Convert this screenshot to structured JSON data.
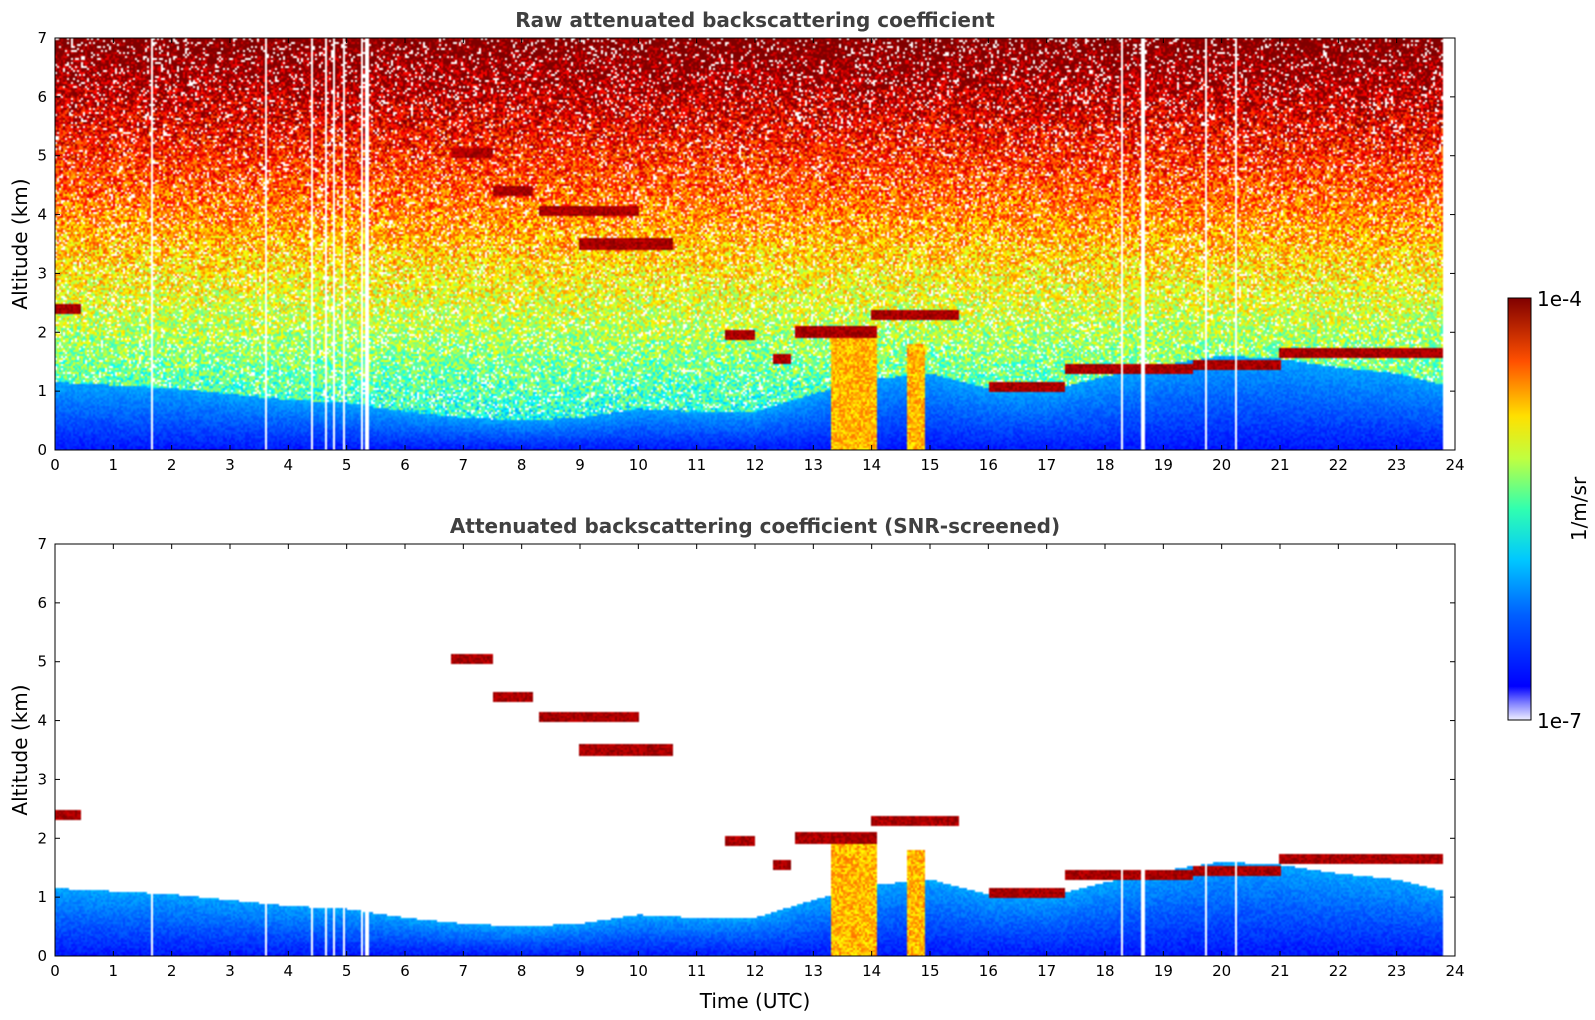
{
  "chart_data": [
    {
      "type": "heatmap",
      "id": "raw",
      "title": "Raw attenuated backscattering coefficient",
      "xlabel": "",
      "ylabel": "Altitude (km)",
      "xlim": [
        0,
        24
      ],
      "ylim": [
        0,
        7
      ],
      "xticks": [
        "0",
        "1",
        "2",
        "3",
        "4",
        "5",
        "6",
        "7",
        "8",
        "9",
        "10",
        "11",
        "12",
        "13",
        "14",
        "15",
        "16",
        "17",
        "18",
        "19",
        "20",
        "21",
        "22",
        "23",
        "24"
      ],
      "yticks": [
        "0",
        "1",
        "2",
        "3",
        "4",
        "5",
        "6",
        "7"
      ],
      "data_extent_hours": [
        0,
        23.8
      ],
      "missing_profiles_utc": [
        1.65,
        3.62,
        4.42,
        4.65,
        4.78,
        4.95,
        5.25,
        5.35,
        18.3,
        18.65,
        19.72,
        20.25
      ],
      "features": [
        {
          "kind": "cloud_layer",
          "t_start": 0.0,
          "t_end": 0.45,
          "alt_km": 2.4
        },
        {
          "kind": "cloud_layer",
          "t_start": 6.8,
          "t_end": 7.5,
          "alt_km": 5.05
        },
        {
          "kind": "cloud_layer",
          "t_start": 7.5,
          "t_end": 8.2,
          "alt_km": 4.4
        },
        {
          "kind": "cloud_layer",
          "t_start": 8.3,
          "t_end": 10.0,
          "alt_km": 4.05
        },
        {
          "kind": "cloud_layer",
          "t_start": 9.0,
          "t_end": 10.0,
          "alt_km": 3.5
        },
        {
          "kind": "cloud_layer",
          "t_start": 10.0,
          "t_end": 10.6,
          "alt_km": 3.5
        },
        {
          "kind": "cloud_layer",
          "t_start": 11.5,
          "t_end": 12.0,
          "alt_km": 1.95
        },
        {
          "kind": "cloud_layer",
          "t_start": 12.3,
          "t_end": 12.6,
          "alt_km": 1.55
        },
        {
          "kind": "cloud_layer",
          "t_start": 12.7,
          "t_end": 14.1,
          "alt_km": 2.0
        },
        {
          "kind": "cloud_layer",
          "t_start": 14.0,
          "t_end": 15.5,
          "alt_km": 2.3
        },
        {
          "kind": "cloud_layer",
          "t_start": 16.0,
          "t_end": 17.3,
          "alt_km": 1.08
        },
        {
          "kind": "cloud_layer",
          "t_start": 17.3,
          "t_end": 19.5,
          "alt_km": 1.38
        },
        {
          "kind": "cloud_layer",
          "t_start": 19.5,
          "t_end": 21.0,
          "alt_km": 1.45
        },
        {
          "kind": "cloud_layer",
          "t_start": 21.0,
          "t_end": 23.8,
          "alt_km": 1.65
        },
        {
          "kind": "precipitation_column",
          "t_start": 13.3,
          "t_end": 14.1,
          "alt_top_km": 2.0
        },
        {
          "kind": "precipitation_column",
          "t_start": 14.6,
          "t_end": 14.9,
          "alt_top_km": 1.8
        }
      ]
    },
    {
      "type": "heatmap",
      "id": "screened",
      "title": "Attenuated backscattering coefficient (SNR-screened)",
      "xlabel": "Time (UTC)",
      "ylabel": "Altitude (km)",
      "xlim": [
        0,
        24
      ],
      "ylim": [
        0,
        7
      ],
      "xticks": [
        "0",
        "1",
        "2",
        "3",
        "4",
        "5",
        "6",
        "7",
        "8",
        "9",
        "10",
        "11",
        "12",
        "13",
        "14",
        "15",
        "16",
        "17",
        "18",
        "19",
        "20",
        "21",
        "22",
        "23",
        "24"
      ],
      "yticks": [
        "0",
        "1",
        "2",
        "3",
        "4",
        "5",
        "6",
        "7"
      ],
      "data_extent_hours": [
        0,
        23.8
      ],
      "missing_profiles_utc": [
        1.65,
        3.62,
        4.42,
        4.65,
        4.78,
        4.95,
        5.25,
        5.35,
        18.3,
        18.65,
        19.72,
        20.25
      ],
      "boundary_layer_top_km": [
        [
          0,
          1.15
        ],
        [
          1,
          1.1
        ],
        [
          2,
          1.05
        ],
        [
          3,
          0.95
        ],
        [
          4,
          0.85
        ],
        [
          5,
          0.8
        ],
        [
          6,
          0.65
        ],
        [
          7,
          0.55
        ],
        [
          8,
          0.5
        ],
        [
          9,
          0.55
        ],
        [
          10,
          0.7
        ],
        [
          11,
          0.65
        ],
        [
          12,
          0.65
        ],
        [
          13,
          0.95
        ],
        [
          14,
          1.2
        ],
        [
          15,
          1.3
        ],
        [
          16,
          1.05
        ],
        [
          17,
          1.0
        ],
        [
          18,
          1.25
        ],
        [
          19,
          1.45
        ],
        [
          20,
          1.6
        ],
        [
          21,
          1.55
        ],
        [
          22,
          1.4
        ],
        [
          23,
          1.3
        ],
        [
          23.8,
          1.1
        ]
      ]
    }
  ],
  "colorbar": {
    "label": "1/m/sr",
    "max_label": "1e-4",
    "min_label": "1e-7",
    "scale": "log",
    "colormap": "jet"
  }
}
